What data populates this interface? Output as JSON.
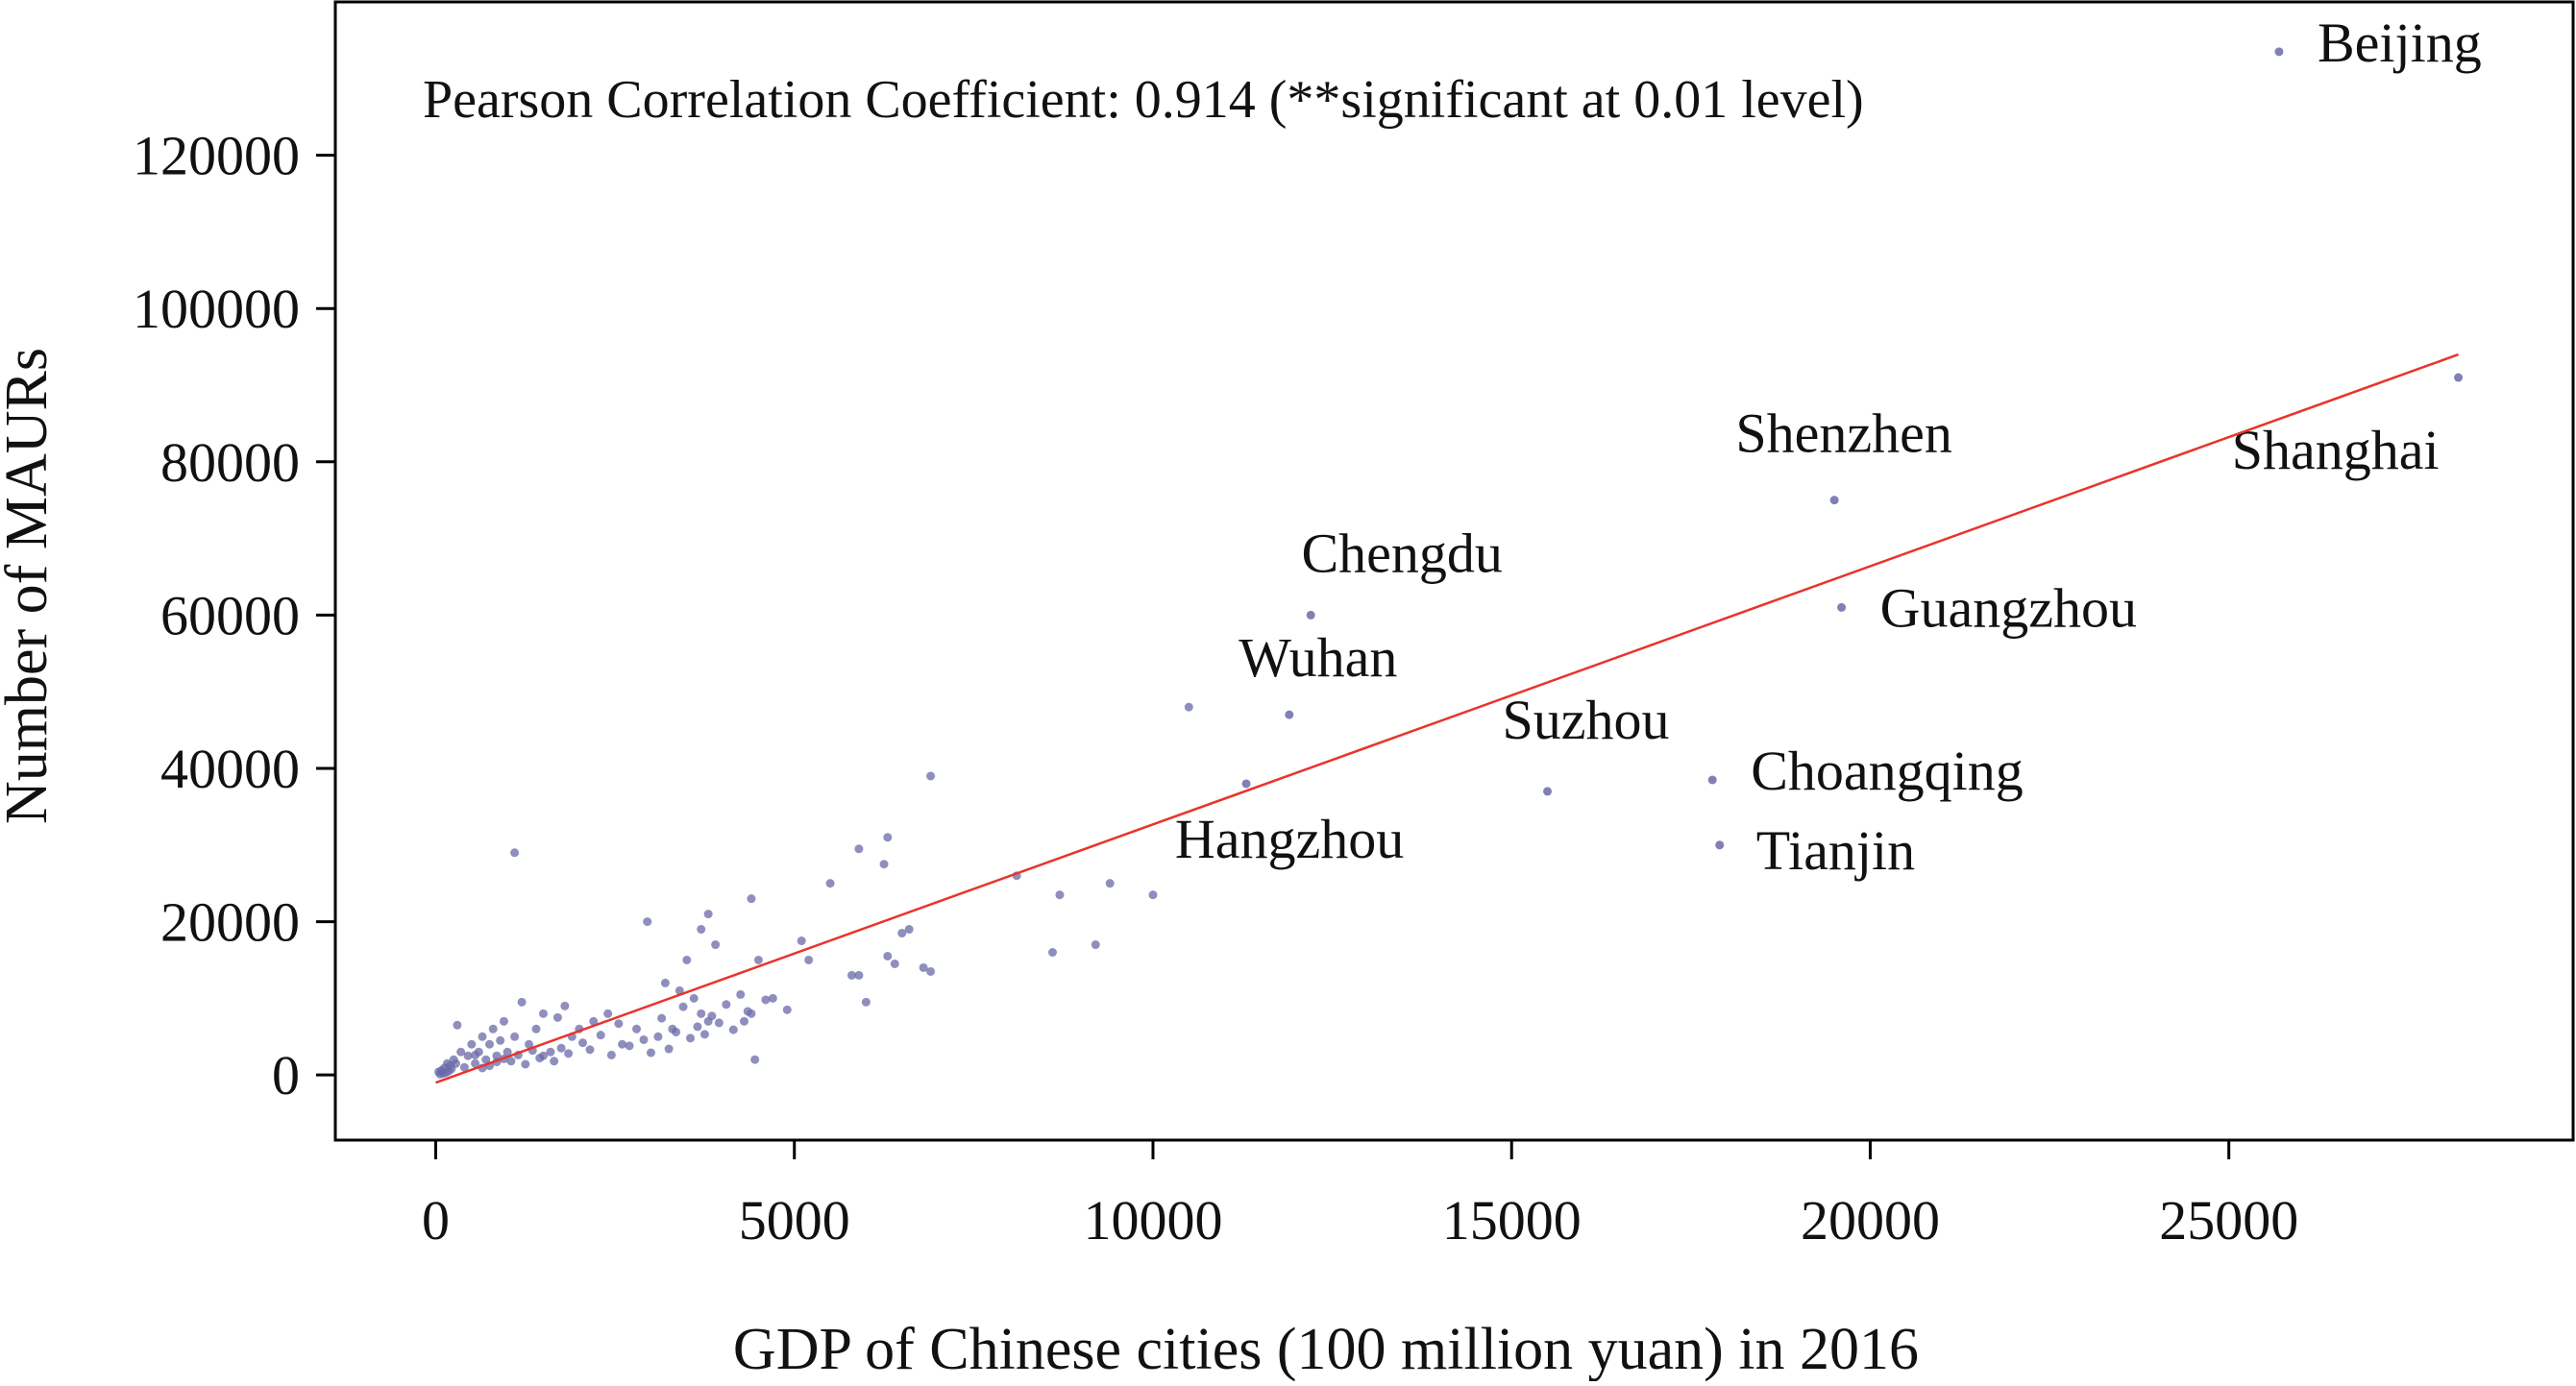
{
  "chart_data": {
    "type": "scatter",
    "title": "",
    "annotation": "Pearson Correlation Coefficient: 0.914 (**significant at 0.01 level)",
    "xlabel": "GDP of Chinese cities (100 million yuan) in 2016",
    "ylabel": "Number of MAURs",
    "xlim": [
      -1400,
      29800
    ],
    "ylim": [
      -8500,
      140000
    ],
    "x_ticks": [
      0,
      5000,
      10000,
      15000,
      20000,
      25000
    ],
    "y_ticks": [
      0,
      20000,
      40000,
      60000,
      80000,
      100000,
      120000
    ],
    "grid": false,
    "legend": "none",
    "colors": {
      "points": "#6a6aa8",
      "trendline": "#e8342a",
      "axis": "#000000"
    },
    "trendline": {
      "x": [
        0,
        28200
      ],
      "y": [
        -1000,
        94000
      ]
    },
    "labeled_points": [
      {
        "name": "Beijing",
        "x": 25700,
        "y": 133500
      },
      {
        "name": "Shanghai",
        "x": 28200,
        "y": 91000
      },
      {
        "name": "Shenzhen",
        "x": 19500,
        "y": 75000
      },
      {
        "name": "Guangzhou",
        "x": 19600,
        "y": 61000
      },
      {
        "name": "Chengdu",
        "x": 12200,
        "y": 60000
      },
      {
        "name": "Wuhan",
        "x": 11900,
        "y": 47000
      },
      {
        "name": "Suzhou",
        "x": 15500,
        "y": 37000
      },
      {
        "name": "Choangqing",
        "x": 17800,
        "y": 38500
      },
      {
        "name": "Tianjin",
        "x": 17900,
        "y": 30000
      },
      {
        "name": "Hangzhou",
        "x": 11300,
        "y": 38000
      }
    ],
    "other_points": [
      [
        10500,
        48000
      ],
      [
        6900,
        39000
      ],
      [
        6300,
        31000
      ],
      [
        5900,
        29500
      ],
      [
        6250,
        27500
      ],
      [
        8100,
        26000
      ],
      [
        8700,
        23500
      ],
      [
        9400,
        25000
      ],
      [
        10000,
        23500
      ],
      [
        5500,
        25000
      ],
      [
        9200,
        17000
      ],
      [
        8600,
        16000
      ],
      [
        6500,
        18500
      ],
      [
        6600,
        19000
      ],
      [
        6300,
        15500
      ],
      [
        6400,
        14500
      ],
      [
        6800,
        14000
      ],
      [
        6900,
        13500
      ],
      [
        5800,
        13000
      ],
      [
        5900,
        13000
      ],
      [
        6000,
        9500
      ],
      [
        5100,
        17500
      ],
      [
        5200,
        15000
      ],
      [
        4400,
        23000
      ],
      [
        4500,
        15000
      ],
      [
        4700,
        10000
      ],
      [
        4400,
        8000
      ],
      [
        4300,
        7000
      ],
      [
        4900,
        8500
      ],
      [
        4600,
        9800
      ],
      [
        4450,
        2000
      ],
      [
        1100,
        29000
      ],
      [
        2950,
        20000
      ],
      [
        3800,
        21000
      ],
      [
        3700,
        19000
      ],
      [
        3900,
        17000
      ],
      [
        3500,
        15000
      ],
      [
        3400,
        11000
      ],
      [
        3200,
        12000
      ],
      [
        3600,
        10000
      ],
      [
        3700,
        8000
      ],
      [
        3800,
        7000
      ],
      [
        3300,
        6000
      ],
      [
        3100,
        5000
      ],
      [
        2800,
        6000
      ],
      [
        2600,
        4000
      ],
      [
        2400,
        8000
      ],
      [
        2200,
        7000
      ],
      [
        2000,
        6000
      ],
      [
        1900,
        5000
      ],
      [
        1800,
        9000
      ],
      [
        1700,
        7500
      ],
      [
        1600,
        3000
      ],
      [
        1500,
        8000
      ],
      [
        1400,
        6000
      ],
      [
        1300,
        4000
      ],
      [
        1200,
        9500
      ],
      [
        1100,
        5000
      ],
      [
        1000,
        3000
      ],
      [
        950,
        7000
      ],
      [
        900,
        4500
      ],
      [
        850,
        2500
      ],
      [
        800,
        6000
      ],
      [
        750,
        4000
      ],
      [
        700,
        2000
      ],
      [
        650,
        5000
      ],
      [
        600,
        3000
      ],
      [
        550,
        1500
      ],
      [
        500,
        4000
      ],
      [
        450,
        2500
      ],
      [
        400,
        1000
      ],
      [
        350,
        3000
      ],
      [
        300,
        6500
      ],
      [
        280,
        1500
      ],
      [
        250,
        2000
      ],
      [
        220,
        800
      ],
      [
        200,
        1200
      ],
      [
        180,
        500
      ],
      [
        160,
        1500
      ],
      [
        140,
        300
      ],
      [
        120,
        900
      ],
      [
        100,
        200
      ],
      [
        80,
        600
      ],
      [
        60,
        100
      ],
      [
        40,
        400
      ],
      [
        1500,
        2500
      ],
      [
        1650,
        1800
      ],
      [
        1750,
        3500
      ],
      [
        1850,
        2800
      ],
      [
        2050,
        4200
      ],
      [
        2150,
        3300
      ],
      [
        2300,
        5200
      ],
      [
        2450,
        2600
      ],
      [
        2550,
        6700
      ],
      [
        2700,
        3800
      ],
      [
        2900,
        4600
      ],
      [
        3000,
        2900
      ],
      [
        3150,
        7400
      ],
      [
        3250,
        3400
      ],
      [
        3350,
        5600
      ],
      [
        3450,
        8900
      ],
      [
        3550,
        4800
      ],
      [
        3650,
        6300
      ],
      [
        3750,
        5300
      ],
      [
        3850,
        7700
      ],
      [
        3950,
        6800
      ],
      [
        4050,
        9200
      ],
      [
        4150,
        5900
      ],
      [
        4250,
        10500
      ],
      [
        4350,
        8300
      ],
      [
        1050,
        1800
      ],
      [
        1150,
        2600
      ],
      [
        1250,
        1400
      ],
      [
        1350,
        3200
      ],
      [
        1450,
        2200
      ],
      [
        750,
        1200
      ],
      [
        850,
        1700
      ],
      [
        950,
        2100
      ],
      [
        650,
        900
      ],
      [
        550,
        2600
      ]
    ]
  }
}
